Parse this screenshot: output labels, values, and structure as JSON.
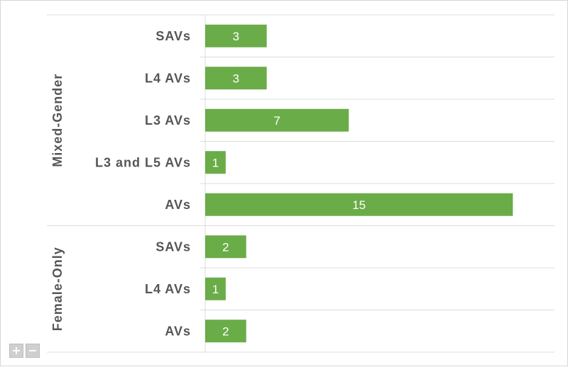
{
  "chart_data": {
    "type": "bar",
    "orientation": "horizontal",
    "groups": [
      {
        "name": "Mixed-Gender",
        "categories": [
          "SAVs",
          "L4 AVs",
          "L3 AVs",
          "L3 and L5 AVs",
          "AVs"
        ],
        "values": [
          3,
          3,
          7,
          1,
          15
        ]
      },
      {
        "name": "Female-Only",
        "categories": [
          "SAVs",
          "L4 AVs",
          "AVs"
        ],
        "values": [
          2,
          1,
          2
        ]
      }
    ],
    "xlim": [
      0,
      16
    ],
    "bar_color": "#6aac48",
    "grid": true,
    "legend": "none"
  },
  "controls": {
    "zoom_in": "+",
    "zoom_out": "−"
  }
}
